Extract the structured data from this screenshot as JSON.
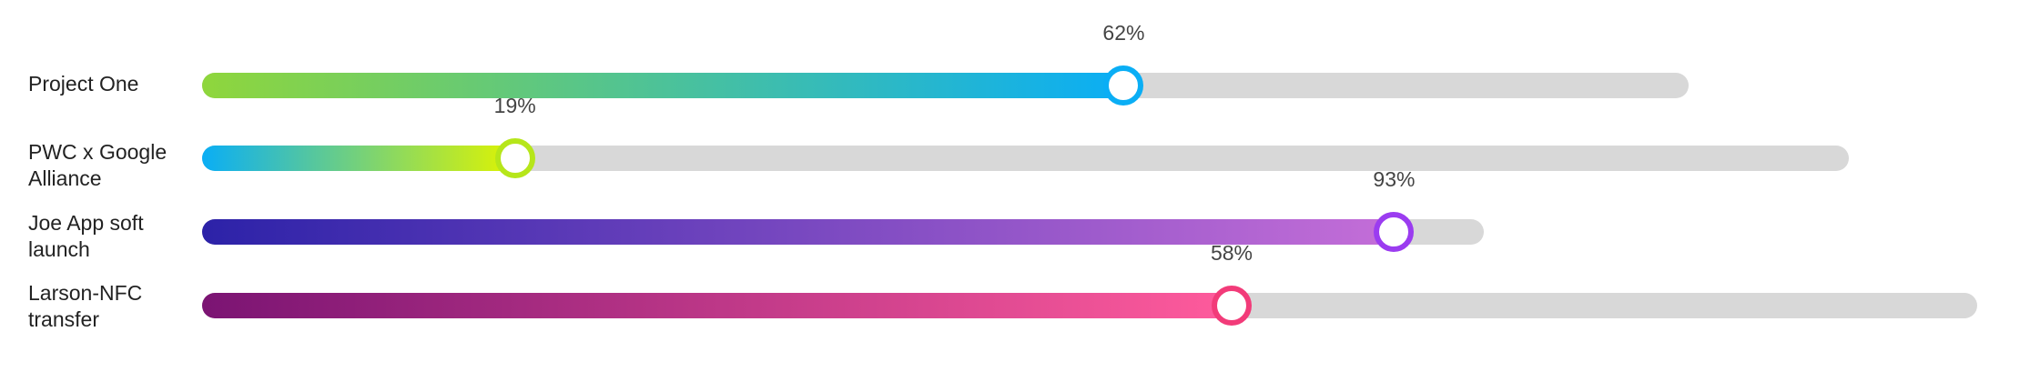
{
  "projects": [
    {
      "name": "Project One",
      "percent": 62,
      "percent_label": "62%",
      "gradient_start": "#8fd63c",
      "gradient_end": "#0aaef5",
      "knob_color": "#0aaef5"
    },
    {
      "name": "PWC x Google Alliance",
      "percent": 19,
      "percent_label": "19%",
      "gradient_start": "#0aaef5",
      "gradient_end": "#dff400",
      "knob_color": "#b6e61a"
    },
    {
      "name": "Joe App soft launch",
      "percent": 93,
      "percent_label": "93%",
      "gradient_start": "#2c22a8",
      "gradient_end": "#c46ed8",
      "knob_color": "#9b3cf0"
    },
    {
      "name": "Larson-NFC transfer",
      "percent": 58,
      "percent_label": "58%",
      "gradient_start": "#7b1473",
      "gradient_end": "#ff5b9c",
      "knob_color": "#f23b79"
    }
  ]
}
